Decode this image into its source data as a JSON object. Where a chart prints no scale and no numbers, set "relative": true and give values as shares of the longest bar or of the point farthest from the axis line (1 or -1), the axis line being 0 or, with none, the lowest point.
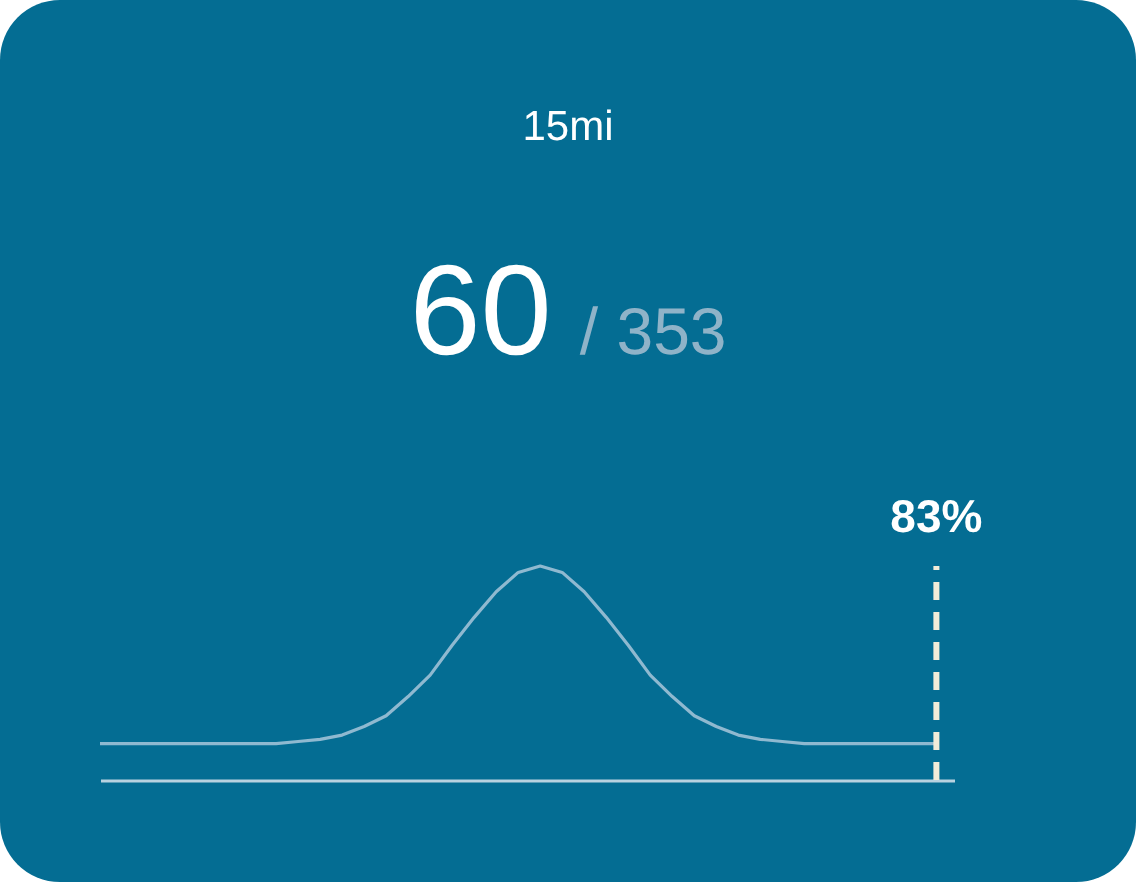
{
  "chart_data": {
    "type": "line",
    "title": "15mi",
    "subtitle": "60",
    "annotations": [
      "/ 353"
    ],
    "relative": true,
    "tick_labels": false,
    "categories": [
      null,
      null,
      null,
      null,
      null,
      null,
      null,
      null,
      null,
      null,
      null,
      null,
      null,
      null,
      null,
      null,
      null,
      null,
      null,
      null,
      null,
      null,
      null,
      null,
      null,
      null,
      null,
      null,
      null,
      null,
      null,
      null,
      null,
      null,
      null,
      null,
      null,
      null,
      null
    ],
    "series": [
      {
        "color": "#8fb9d0",
        "values": [
          0.17,
          0.17,
          0.17,
          0.17,
          0.17,
          0.17,
          0.17,
          0.17,
          0.17,
          0.18,
          0.19,
          0.21,
          0.25,
          0.3,
          0.39,
          0.49,
          0.63,
          0.76,
          0.88,
          0.97,
          1.0,
          0.97,
          0.88,
          0.76,
          0.63,
          0.49,
          0.39,
          0.3,
          0.25,
          0.21,
          0.19,
          0.18,
          0.17,
          0.17,
          0.17,
          0.17,
          0.17,
          0.17,
          0.17
        ]
      }
    ],
    "ref_lines": [
      {
        "axis": "x",
        "label": "83%",
        "color": "#f2ecd9",
        "line_style": "dashed"
      }
    ]
  }
}
